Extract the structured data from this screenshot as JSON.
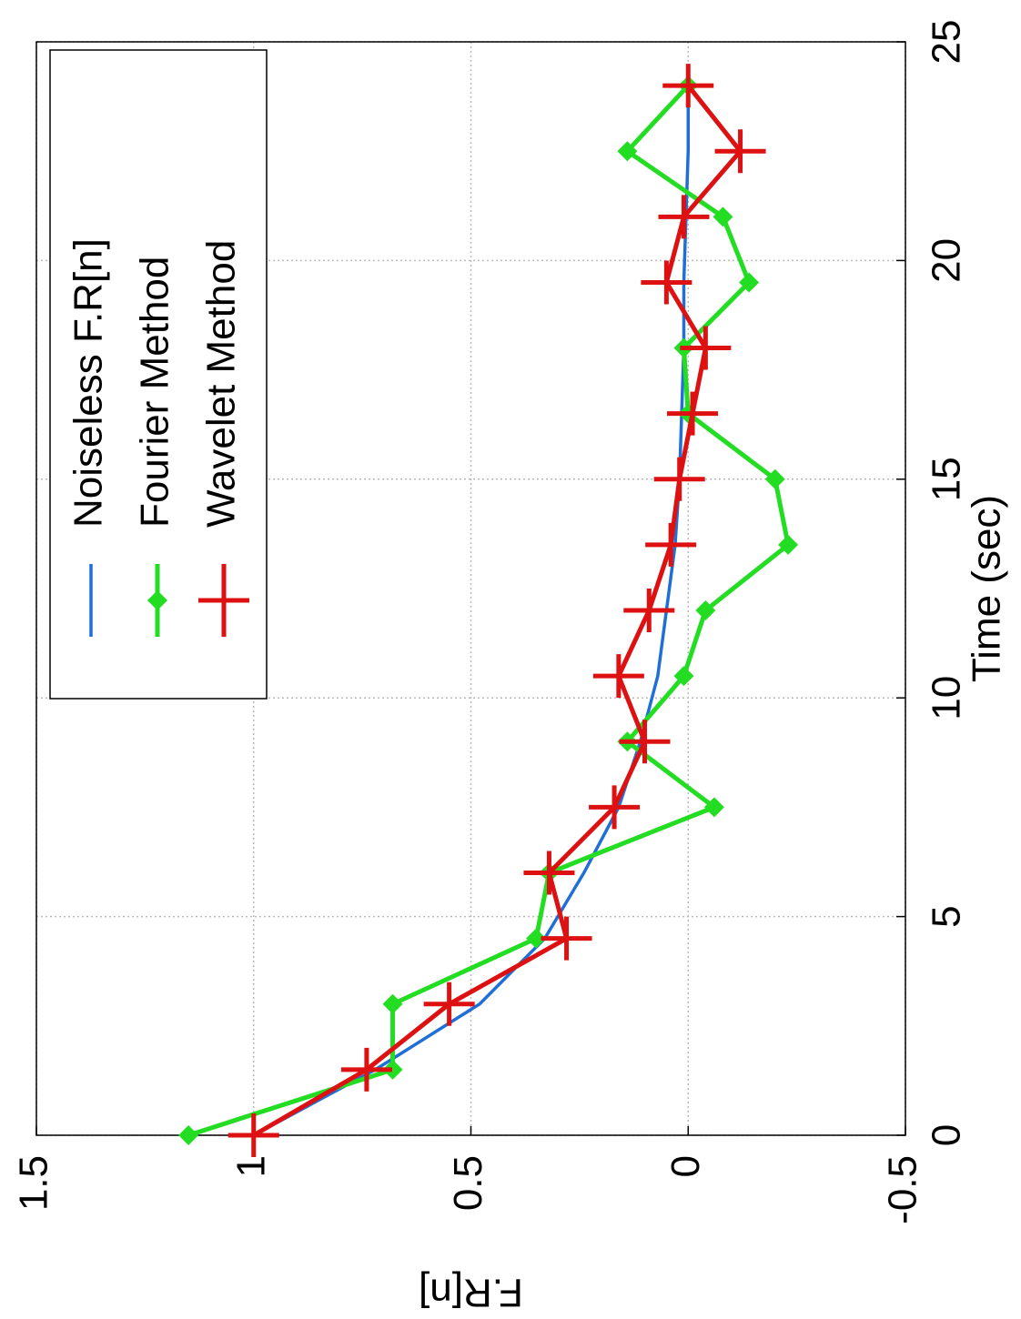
{
  "chart_data": {
    "type": "line",
    "x_label": "Time  (sec)",
    "y_label": "F.R[n]",
    "x": [
      0,
      1.5,
      3,
      4.5,
      6,
      7.5,
      9,
      10.5,
      12,
      13.5,
      15,
      16.5,
      18,
      19.5,
      21,
      22.5,
      24
    ],
    "series": [
      {
        "name": "Noiseless F.R[n]",
        "color": "#1f6fd6",
        "marker": "none",
        "values": [
          1.0,
          0.72,
          0.48,
          0.33,
          0.24,
          0.16,
          0.11,
          0.07,
          0.05,
          0.03,
          0.02,
          0.015,
          0.01,
          0.01,
          0.005,
          0.0,
          0.0
        ]
      },
      {
        "name": "Fourier Method",
        "color": "#22dd22",
        "marker": "diamond",
        "values": [
          1.15,
          0.68,
          0.68,
          0.35,
          0.32,
          -0.06,
          0.14,
          0.01,
          -0.04,
          -0.23,
          -0.2,
          0.0,
          0.01,
          -0.14,
          -0.08,
          0.14,
          0.0
        ]
      },
      {
        "name": "Wavelet Method",
        "color": "#dd1111",
        "marker": "plus",
        "values": [
          1.0,
          0.74,
          0.55,
          0.28,
          0.32,
          0.17,
          0.1,
          0.16,
          0.09,
          0.04,
          0.02,
          -0.01,
          -0.04,
          0.05,
          0.01,
          -0.12,
          0.0
        ]
      }
    ],
    "xlim": [
      0,
      25
    ],
    "xticks": [
      0,
      5,
      10,
      15,
      20,
      25
    ],
    "ylim": [
      -0.5,
      1.5
    ],
    "yticks": [
      -0.5,
      0,
      0.5,
      1,
      1.5
    ],
    "grid": true,
    "legend": "top-right"
  }
}
